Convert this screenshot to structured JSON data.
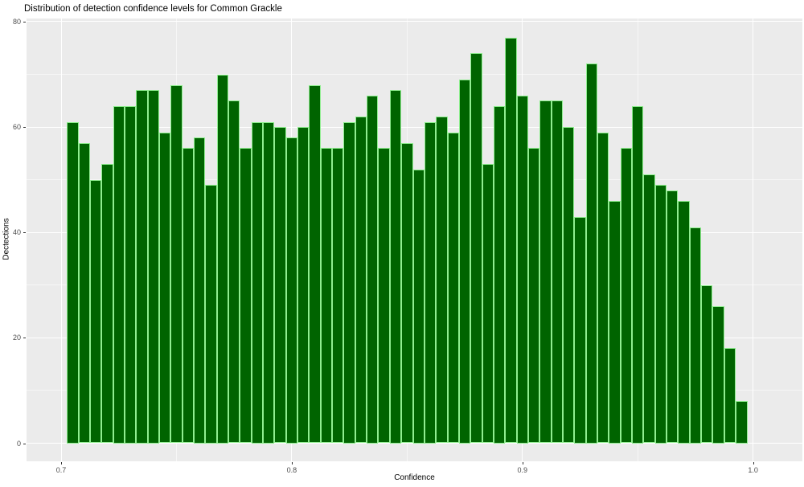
{
  "title": "Distribution of detection confidence levels for Common Grackle",
  "x_axis": {
    "label": "Confidence"
  },
  "y_axis": {
    "label": "Dectections"
  },
  "chart_data": {
    "type": "bar",
    "subtype": "histogram",
    "title": "Distribution of detection confidence levels for Common Grackle",
    "xlabel": "Confidence",
    "ylabel": "Dectections",
    "bin_start": 0.7025,
    "bin_width": 0.005,
    "values": [
      61,
      57,
      50,
      53,
      64,
      64,
      67,
      67,
      59,
      68,
      56,
      58,
      49,
      70,
      65,
      56,
      61,
      61,
      60,
      58,
      60,
      68,
      56,
      56,
      61,
      62,
      66,
      56,
      67,
      57,
      52,
      61,
      62,
      59,
      69,
      74,
      53,
      64,
      77,
      66,
      56,
      65,
      65,
      60,
      43,
      72,
      59,
      46,
      56,
      64,
      51,
      49,
      48,
      46,
      41,
      30,
      26,
      18,
      8
    ],
    "xlim": [
      0.68501,
      1.02137
    ],
    "ylim": [
      -3.43,
      80.6
    ],
    "x_major_ticks": [
      0.7,
      0.8,
      0.9,
      1.0
    ],
    "x_tick_labels": [
      "0.7",
      "0.8",
      "0.9",
      "1.0"
    ],
    "x_minor_ticks": [
      0.75,
      0.85,
      0.95
    ],
    "y_major_ticks": [
      0,
      20,
      40,
      60,
      80
    ],
    "y_tick_labels": [
      "0",
      "20",
      "40",
      "60",
      "80"
    ],
    "y_minor_ticks": [
      10,
      30,
      50,
      70
    ],
    "grid": true,
    "legend": "none",
    "colors": {
      "bar_fill": "#006400",
      "bar_border": "#90EE90",
      "panel_background": "#EBEBEB",
      "gridline": "#FFFFFF",
      "tick_label": "#4D4D4D",
      "tick_mark": "#333333",
      "text": "#000000",
      "page_background": "#FFFFFF"
    }
  }
}
